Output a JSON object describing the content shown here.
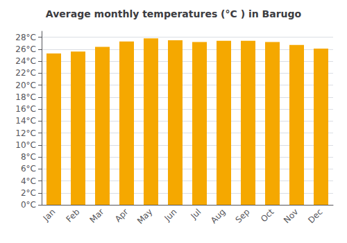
{
  "chart_data": {
    "type": "bar",
    "title": "Average monthly temperatures (°C ) in Barugo",
    "categories": [
      "Jan",
      "Feb",
      "Mar",
      "Apr",
      "May",
      "Jun",
      "Jul",
      "Aug",
      "Sep",
      "Oct",
      "Nov",
      "Dec"
    ],
    "values": [
      25.3,
      25.6,
      26.4,
      27.3,
      27.8,
      27.5,
      27.2,
      27.4,
      27.4,
      27.2,
      26.7,
      26.1
    ],
    "color": "#F5A800",
    "ylim": [
      0,
      29
    ],
    "yticks": [
      {
        "value": 0,
        "label": "0°C"
      },
      {
        "value": 2,
        "label": "2°C"
      },
      {
        "value": 4,
        "label": "4°C"
      },
      {
        "value": 6,
        "label": "6°C"
      },
      {
        "value": 8,
        "label": "8°C"
      },
      {
        "value": 10,
        "label": "10°C"
      },
      {
        "value": 12,
        "label": "12°C"
      },
      {
        "value": 14,
        "label": "14°C"
      },
      {
        "value": 16,
        "label": "16°C"
      },
      {
        "value": 18,
        "label": "18°C"
      },
      {
        "value": 20,
        "label": "20°C"
      },
      {
        "value": 22,
        "label": "22°C"
      },
      {
        "value": 24,
        "label": "24°C"
      },
      {
        "value": 26,
        "label": "26°C"
      },
      {
        "value": 28,
        "label": "28°C"
      }
    ],
    "grid": true
  }
}
